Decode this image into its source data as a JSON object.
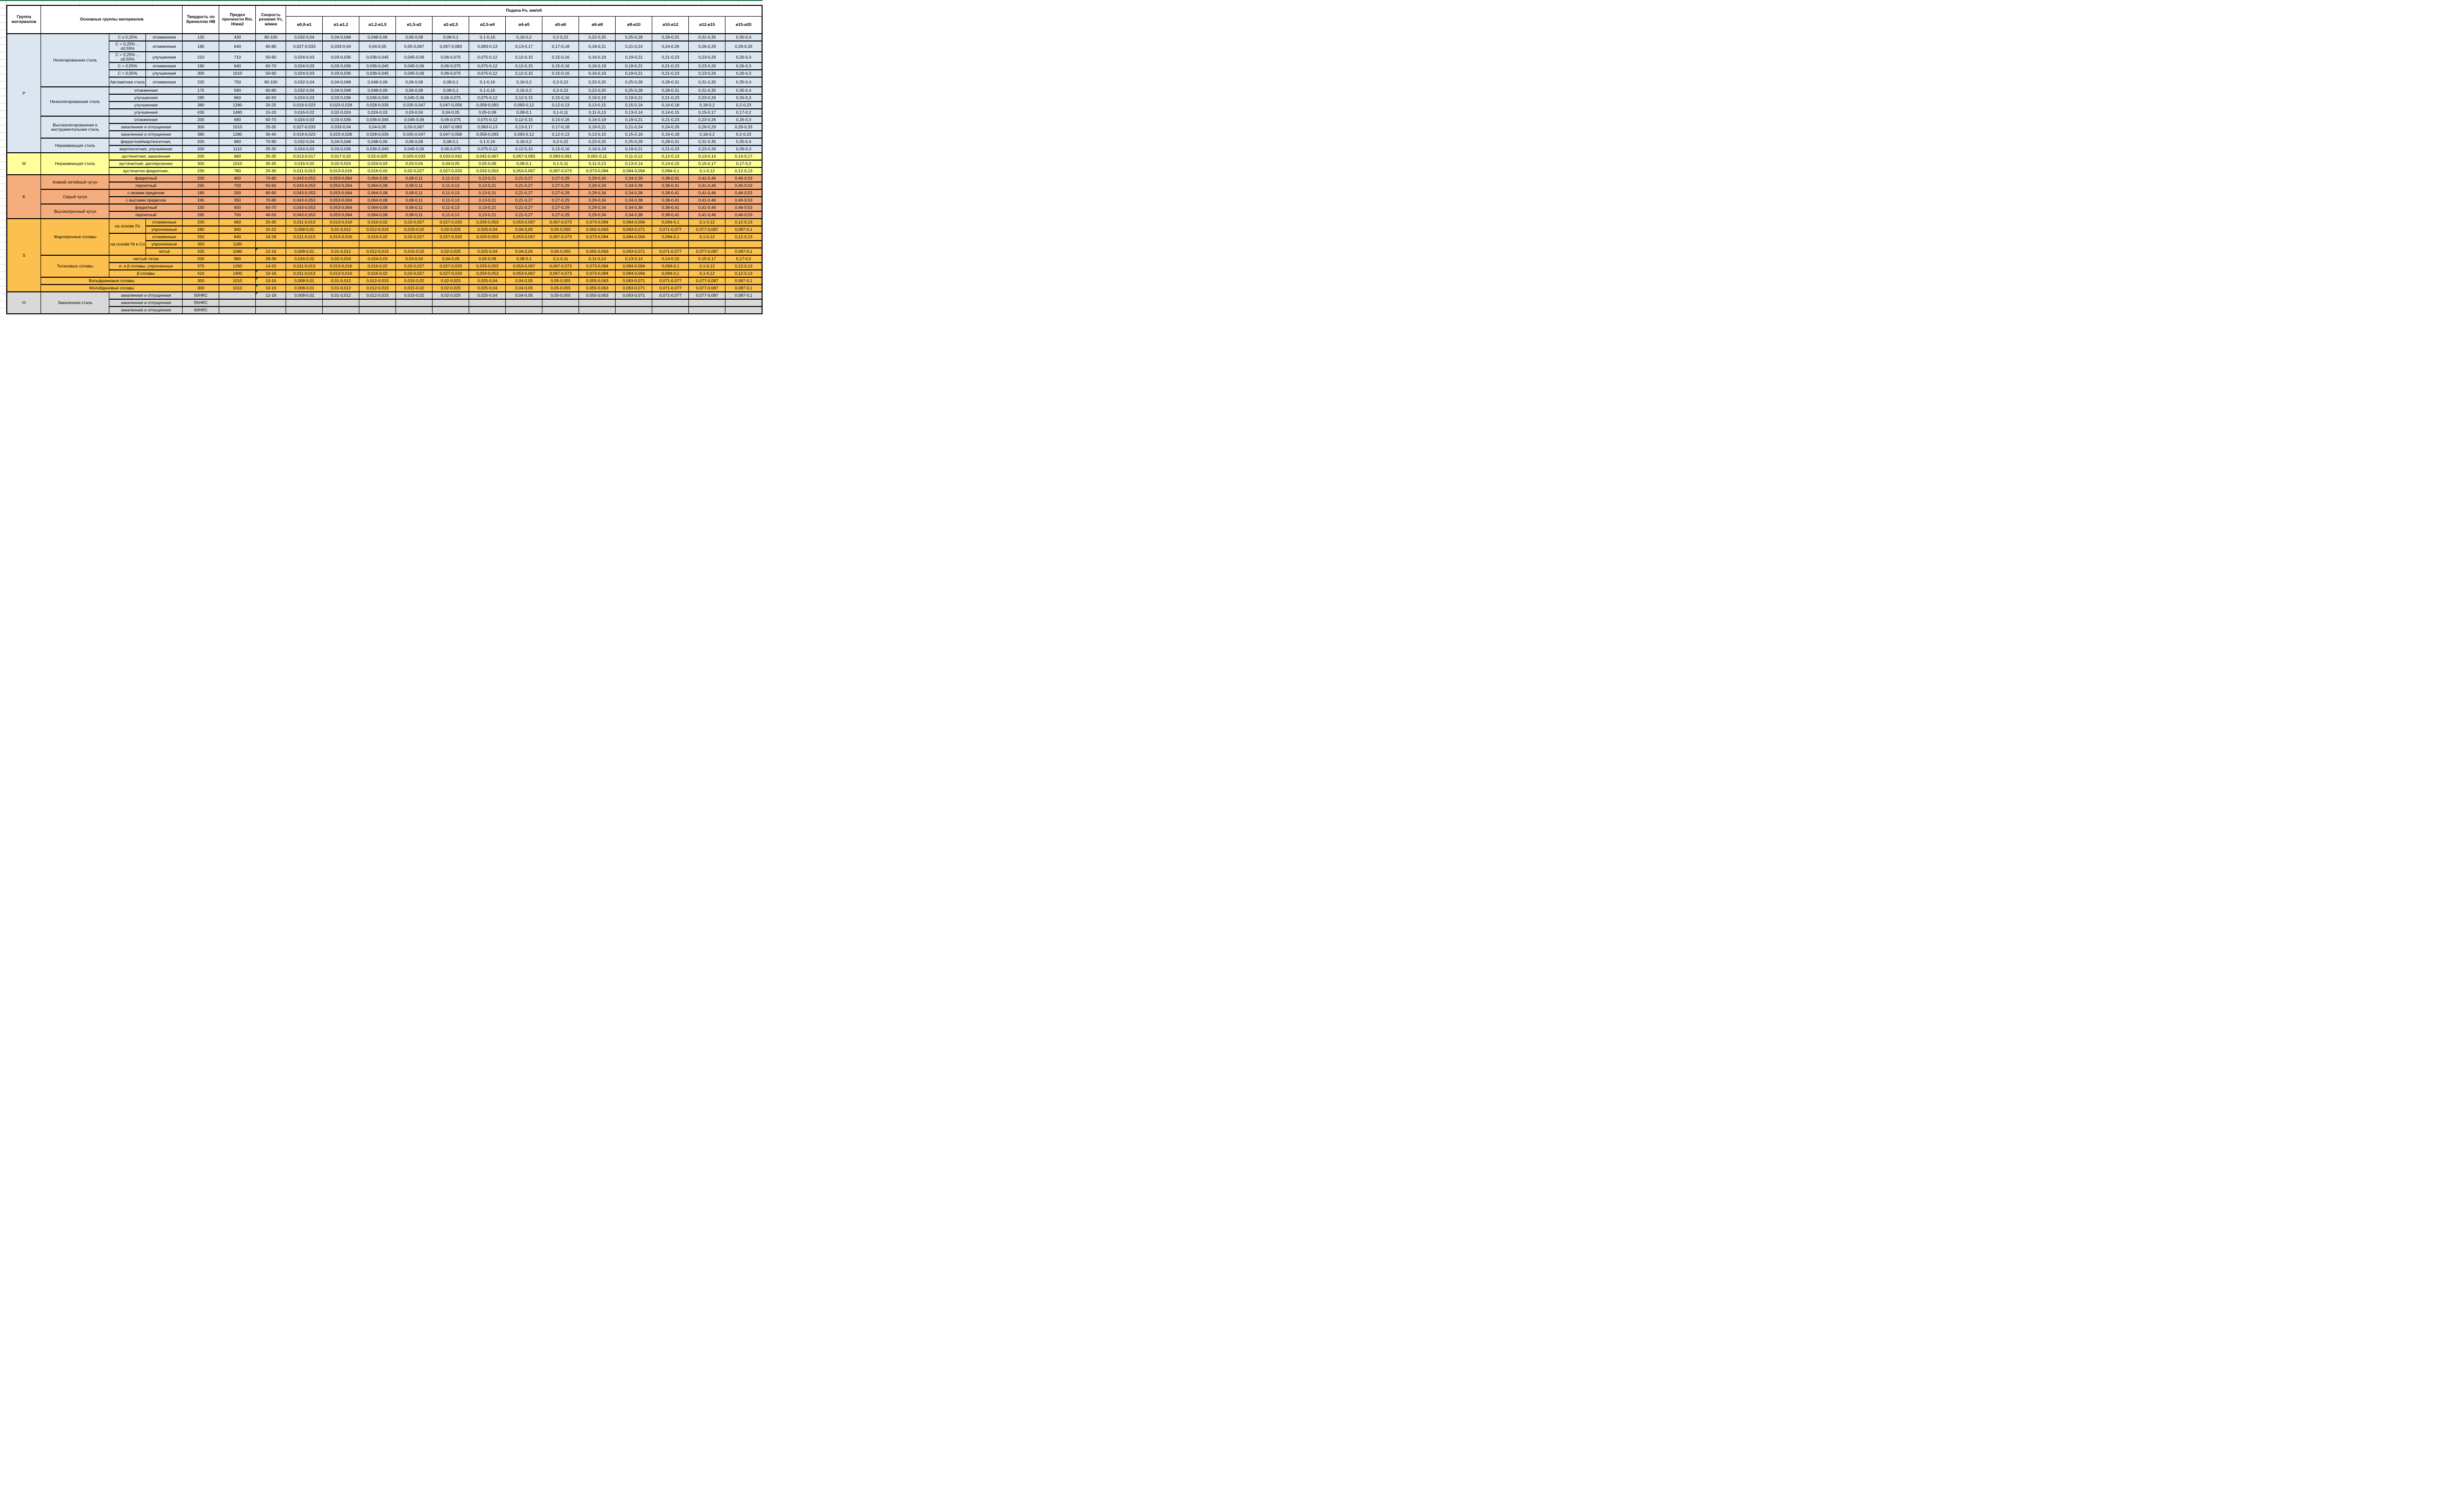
{
  "sheet": {
    "col_group": "Группа материалов",
    "col_materials": "Основные группы материалов",
    "col_hardness": "Твердость по Бринеллю HB",
    "col_strength": "Предел прочности Rm, Н/мм2",
    "col_speed": "Скорость резания Vc, м/мин",
    "feed_title": "Подача Fn, мм/об",
    "diameters": [
      "ø0,8-ø1",
      "ø1-ø1,2",
      "ø1,2-ø1,5",
      "ø1,5-ø2",
      "ø2-ø2,5",
      "ø2,5-ø4",
      "ø4-ø5",
      "ø5-ø6",
      "ø6-ø8",
      "ø8-ø10",
      "ø10-ø12",
      "ø12-ø15",
      "ø15-ø20"
    ],
    "note_color": "#1e7145"
  },
  "feed_patterns": {
    "A": [
      "0,032-0,04",
      "0,04-0,048",
      "0,048-0,06",
      "0,06-0,08",
      "0,08-0,1",
      "0,1-0,16",
      "0,16-0,2",
      "0,2-0,22",
      "0,22-0,25",
      "0,25-0,28",
      "0,28-0,31",
      "0,31-0,35",
      "0,35-0,4"
    ],
    "B": [
      "0,024-0,03",
      "0,03-0,036",
      "0,036-0,045",
      "0,045-0,06",
      "0,06-0,075",
      "0,075-0,12",
      "0,12-0,15",
      "0,15-0,16",
      "0,16-0,19",
      "0,19-0,21",
      "0,21-0,23",
      "0,23-0,26",
      "0,26-0,3"
    ],
    "C": [
      "0,027-0,033",
      "0,033-0,04",
      "0,04-0,05",
      "0,05-0,067",
      "0,067-0,083",
      "0,083-0,13",
      "0,13-0,17",
      "0,17-0,18",
      "0,18-0,21",
      "0,21-0,24",
      "0,24-0,26",
      "0,26-0,29",
      "0,29-0,33"
    ],
    "D": [
      "0,019-0,023",
      "0,023-0,028",
      "0,028-0,035",
      "0,035-0,047",
      "0,047-0,058",
      "0,058-0,093",
      "0,093-0,12",
      "0,12-0,13",
      "0,13-0,15",
      "0,15-0,16",
      "0,16-0,18",
      "0,18-0,2",
      "0,2-0,23"
    ],
    "E": [
      "0,016-0,02",
      "0,02-0,024",
      "0,024-0,03",
      "0,03-0,04",
      "0,04-0,05",
      "0,05-0,08",
      "0,08-0,1",
      "0,1-0,11",
      "0,11-0,13",
      "0,13-0,14",
      "0,14-0,15",
      "0,15-0,17",
      "0,17-0,2"
    ],
    "F": [
      "0,013-0,017",
      "0,017-0,02",
      "0,02-0,025",
      "0,025-0,033",
      "0,033-0,042",
      "0,042-0,067",
      "0,067-0,083",
      "0,083-0,091",
      "0,091-0,11",
      "0,11-0,12",
      "0,12-0,13",
      "0,13-0,14",
      "0,14-0,17"
    ],
    "G": [
      "0,011-0,013",
      "0,013-0,016",
      "0,016-0,02",
      "0,02-0,027",
      "0,027-0,033",
      "0,033-0,053",
      "0,053-0,067",
      "0,067-0,073",
      "0,073-0,084",
      "0,084-0,094",
      "0,094-0,1",
      "0,1-0,12",
      "0,12-0,13"
    ],
    "K": [
      "0,043-0,053",
      "0,053-0,064",
      "0,064-0,08",
      "0,08-0,11",
      "0,11-0,13",
      "0,13-0,21",
      "0,21-0,27",
      "0,27-0,29",
      "0,29-0,34",
      "0,34-0,38",
      "0,38-0,41",
      "0,41-0,46",
      "0,46-0,53"
    ],
    "H8": [
      "0,008-0,01",
      "0,01-0,012",
      "0,012-0,015",
      "0,015-0,02",
      "0,02-0,025",
      "0,025-0,04",
      "0,04-0,05",
      "0,05-0,055",
      "0,055-0,063",
      "0,063-0,071",
      "0,071-0,077",
      "0,077-0,087",
      "0,087-0,1"
    ],
    "EMPTY": [
      "",
      "",
      "",
      "",
      "",
      "",
      "",
      "",
      "",
      "",
      "",
      "",
      ""
    ]
  },
  "groups": [
    {
      "id": "P",
      "color": "#dce6f1",
      "rows": [
        {
          "h": 15,
          "cells": [
            {
              "t": "P",
              "rs": 15,
              "w": "group"
            },
            {
              "t": "Нелегированная сталь",
              "rs": 6,
              "w": "label"
            },
            {
              "t": "C ≤ 0,25%",
              "w": "sub"
            },
            {
              "t": "отожженная",
              "w": "sub"
            }
          ],
          "hb": "125",
          "rm": "430",
          "vc": "80-100",
          "feeds": "A"
        },
        {
          "h": 22,
          "cells": [
            {
              "t": "C > 0,25% ... ≤0,55%",
              "w": "sub"
            },
            {
              "t": "отожженная",
              "w": "sub"
            }
          ],
          "hb": "190",
          "rm": "640",
          "vc": "60-80",
          "feeds": "C"
        },
        {
          "h": 22,
          "cells": [
            {
              "t": "C > 0,25% ... ≤0,55%",
              "w": "sub"
            },
            {
              "t": "улучшенная",
              "w": "sub"
            }
          ],
          "hb": "210",
          "rm": "710",
          "vc": "50-60",
          "feeds": "B"
        },
        {
          "h": 15,
          "cells": [
            {
              "t": "C > 0,55%",
              "w": "sub"
            },
            {
              "t": "отожженная",
              "w": "sub"
            }
          ],
          "hb": "190",
          "rm": "640",
          "vc": "60-70",
          "feeds": "B"
        },
        {
          "h": 15,
          "cells": [
            {
              "t": "C > 0,55%",
              "w": "sub"
            },
            {
              "t": "улучшенная",
              "w": "sub"
            }
          ],
          "hb": "300",
          "rm": "1010",
          "vc": "50-60",
          "feeds": "B"
        },
        {
          "h": 20,
          "cells": [
            {
              "t": "Автоматная сталь",
              "w": "sub"
            },
            {
              "t": "отожженная",
              "w": "sub"
            }
          ],
          "hb": "220",
          "rm": "750",
          "vc": "80-100",
          "feeds": "A"
        },
        {
          "h": 15,
          "cells": [
            {
              "t": "Низколегированная сталь",
              "rs": 4,
              "w": "label"
            },
            {
              "t": "отожженная",
              "cs": 2,
              "w": "sub"
            }
          ],
          "hb": "175",
          "rm": "590",
          "vc": "60-80",
          "feeds": "A"
        },
        {
          "h": 15,
          "cells": [
            {
              "t": "улучшенная",
              "cs": 2,
              "w": "sub"
            }
          ],
          "hb": "285",
          "rm": "960",
          "vc": "40-50",
          "feeds": "B"
        },
        {
          "h": 15,
          "cells": [
            {
              "t": "улучшенная",
              "cs": 2,
              "w": "sub"
            }
          ],
          "hb": "380",
          "rm": "1280",
          "vc": "20-25",
          "feeds": "D"
        },
        {
          "h": 15,
          "cells": [
            {
              "t": "улучшенная",
              "cs": 2,
              "w": "sub"
            }
          ],
          "hb": "430",
          "rm": "1480",
          "vc": "15-20",
          "feeds": "E"
        },
        {
          "h": 15,
          "cells": [
            {
              "t": "Высоколегированная и инструментальная сталь",
              "rs": 3,
              "w": "label"
            },
            {
              "t": "отожженная",
              "cs": 2,
              "w": "sub"
            }
          ],
          "hb": "200",
          "rm": "680",
          "vc": "60-70",
          "feeds": "B"
        },
        {
          "h": 15,
          "cells": [
            {
              "t": "закаленная и отпущенная",
              "cs": 2,
              "w": "sub"
            }
          ],
          "hb": "300",
          "rm": "1010",
          "vc": "25-35",
          "feeds": "C"
        },
        {
          "h": 15,
          "cells": [
            {
              "t": "закаленная и отпущенная",
              "cs": 2,
              "w": "sub"
            }
          ],
          "hb": "380",
          "rm": "1280",
          "vc": "30-40",
          "feeds": "D"
        },
        {
          "h": 15,
          "cells": [
            {
              "t": "Нержавеющая сталь",
              "rs": 2,
              "w": "label"
            },
            {
              "t": "ферритная/мартенситная,",
              "cs": 2,
              "w": "sub"
            }
          ],
          "hb": "200",
          "rm": "680",
          "vc": "70-80",
          "feeds": "A"
        },
        {
          "h": 15,
          "cells": [
            {
              "t": "мартенситная, улучшенная",
              "cs": 2,
              "w": "sub"
            }
          ],
          "hb": "330",
          "rm": "1110",
          "vc": "25-35",
          "feeds": "B"
        }
      ]
    },
    {
      "id": "M",
      "color": "#ffff99",
      "rows": [
        {
          "h": 15,
          "cells": [
            {
              "t": "M",
              "rs": 3,
              "w": "group"
            },
            {
              "t": "Нержавеющая сталь",
              "rs": 3,
              "w": "label"
            },
            {
              "t": "аустенитная, закаленная",
              "cs": 2,
              "w": "sub"
            }
          ],
          "hb": "200",
          "rm": "680",
          "vc": "25-35",
          "feeds": "F"
        },
        {
          "h": 15,
          "cells": [
            {
              "t": "аустенитная, дисперсионно",
              "cs": 2,
              "w": "sub"
            }
          ],
          "hb": "300",
          "rm": "1010",
          "vc": "35-45",
          "feeds": "E"
        },
        {
          "h": 15,
          "cells": [
            {
              "t": "аустенитно-ферритная,",
              "cs": 2,
              "w": "sub"
            }
          ],
          "hb": "230",
          "rm": "780",
          "vc": "20-30",
          "feeds": "G"
        }
      ]
    },
    {
      "id": "K",
      "color": "#f5ad7e",
      "rows": [
        {
          "h": 15,
          "cells": [
            {
              "t": "K",
              "rs": 6,
              "w": "group"
            },
            {
              "t": "Ковкий литейный чугун",
              "rs": 2,
              "w": "label"
            },
            {
              "t": "ферритный",
              "cs": 2,
              "w": "sub"
            }
          ],
          "hb": "200",
          "rm": "400",
          "vc": "70-80",
          "feeds": "K"
        },
        {
          "h": 15,
          "cells": [
            {
              "t": "перлитный",
              "cs": 2,
              "w": "sub"
            }
          ],
          "hb": "260",
          "rm": "700",
          "vc": "50-60",
          "feeds": "K"
        },
        {
          "h": 15,
          "cells": [
            {
              "t": "Серый чугун",
              "rs": 2,
              "w": "label"
            },
            {
              "t": "с низким пределом",
              "cs": 2,
              "w": "sub"
            }
          ],
          "hb": "180",
          "rm": "200",
          "vc": "80-90",
          "feeds": "K"
        },
        {
          "h": 15,
          "cells": [
            {
              "t": "с высоким пределом",
              "cs": 2,
              "w": "sub"
            }
          ],
          "hb": "245",
          "rm": "350",
          "vc": "70-80",
          "feeds": "K"
        },
        {
          "h": 15,
          "cells": [
            {
              "t": "Высокопрочный чугун",
              "rs": 2,
              "w": "label"
            },
            {
              "t": "ферритный",
              "cs": 2,
              "w": "sub"
            }
          ],
          "hb": "155",
          "rm": "400",
          "vc": "60-70",
          "feeds": "K"
        },
        {
          "h": 15,
          "cells": [
            {
              "t": "перлитный",
              "cs": 2,
              "w": "sub"
            }
          ],
          "hb": "265",
          "rm": "700",
          "vc": "40-50",
          "feeds": "K"
        }
      ]
    },
    {
      "id": "S",
      "color": "#fbc04d",
      "rows": [
        {
          "h": 15,
          "cells": [
            {
              "t": "S",
              "rs": 10,
              "w": "group"
            },
            {
              "t": "Жаропрочные сплавы",
              "rs": 5,
              "w": "label"
            },
            {
              "t": "на основе Fe",
              "rs": 2,
              "w": "sub"
            },
            {
              "t": "отожженные",
              "w": "sub"
            }
          ],
          "hb": "200",
          "rm": "680",
          "vc": "20-30",
          "feeds": "G"
        },
        {
          "h": 15,
          "cells": [
            {
              "t": "упрочненные",
              "w": "sub"
            }
          ],
          "hb": "280",
          "rm": "940",
          "vc": "15-22",
          "feeds": "H8"
        },
        {
          "h": 15,
          "cells": [
            {
              "t": "на основе Ni и Co",
              "rs": 3,
              "w": "sub"
            },
            {
              "t": "отожженные",
              "w": "sub"
            }
          ],
          "hb": "250",
          "rm": "840",
          "vc": "16-28",
          "feeds": "G"
        },
        {
          "h": 15,
          "cells": [
            {
              "t": "упрочненные",
              "w": "sub"
            }
          ],
          "hb": "350",
          "rm": "1180",
          "vc": "",
          "feeds": "EMPTY"
        },
        {
          "h": 15,
          "cells": [
            {
              "t": "литьё",
              "w": "sub"
            }
          ],
          "hb": "320",
          "rm": "1080",
          "vc": "12-16",
          "note": true,
          "feeds": "H8"
        },
        {
          "h": 15,
          "cells": [
            {
              "t": "Титановые сплавы",
              "rs": 3,
              "w": "label"
            },
            {
              "t": "чистый титан",
              "cs": 2,
              "w": "sub"
            }
          ],
          "hb": "200",
          "rm": "680",
          "vc": "28-36",
          "feeds": "E"
        },
        {
          "h": 15,
          "cells": [
            {
              "t": "α- и β-сплавы, упрочненные",
              "cs": 2,
              "w": "sub"
            }
          ],
          "hb": "375",
          "rm": "1260",
          "vc": "14-20",
          "feeds": "G"
        },
        {
          "h": 15,
          "cells": [
            {
              "t": "β-сплавы",
              "cs": 2,
              "w": "sub"
            }
          ],
          "hb": "410",
          "rm": "1400",
          "vc": "10-16",
          "note": true,
          "feeds": "G"
        },
        {
          "h": 15,
          "cells": [
            {
              "t": "Вольфрамовые сплавы",
              "cs": 3,
              "w": "label"
            }
          ],
          "hb": "300",
          "rm": "1010",
          "vc": "10-16",
          "note": true,
          "feeds": "H8"
        },
        {
          "h": 15,
          "cells": [
            {
              "t": "Молибденовые сплавы",
              "cs": 3,
              "w": "label"
            }
          ],
          "hb": "300",
          "rm": "1010",
          "vc": "10-16",
          "note": true,
          "feeds": "H8"
        }
      ]
    },
    {
      "id": "H",
      "color": "#d9d9d9",
      "rows": [
        {
          "h": 15,
          "cells": [
            {
              "t": "H",
              "rs": 3,
              "w": "group"
            },
            {
              "t": "Закаленная сталь",
              "rs": 3,
              "w": "label"
            },
            {
              "t": "закаленная и отпущенная",
              "cs": 2,
              "w": "sub"
            }
          ],
          "hb": "50HRC",
          "rm": "",
          "vc": "12-18",
          "note": true,
          "feeds": "H8"
        },
        {
          "h": 15,
          "cells": [
            {
              "t": "закаленная и отпущенная",
              "cs": 2,
              "w": "sub"
            }
          ],
          "hb": "55HRC",
          "rm": "",
          "vc": "",
          "feeds": "EMPTY"
        },
        {
          "h": 15,
          "cells": [
            {
              "t": "закаленная и отпущенная",
              "cs": 2,
              "w": "sub"
            }
          ],
          "hb": "60HRC",
          "rm": "",
          "vc": "",
          "feeds": "EMPTY"
        }
      ]
    }
  ]
}
